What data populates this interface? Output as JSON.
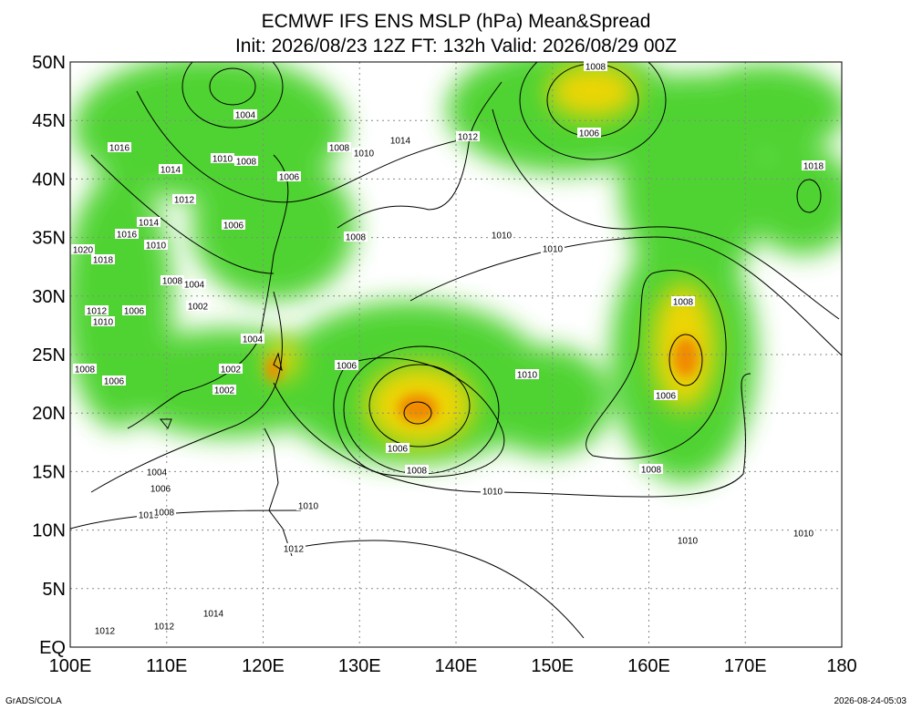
{
  "title": "ECMWF IFS ENS MSLP (hPa) Mean&Spread",
  "subtitle": "Init: 2026/08/23 12Z  FT: 132h  Valid: 2026/08/29 00Z",
  "lat_labels": [
    "50N",
    "45N",
    "40N",
    "35N",
    "30N",
    "25N",
    "20N",
    "15N",
    "10N",
    "5N",
    "EQ"
  ],
  "lon_labels": [
    "100E",
    "110E",
    "120E",
    "130E",
    "140E",
    "150E",
    "160E",
    "170E",
    "180"
  ],
  "contour_labels": [
    "1008",
    "1006",
    "1004",
    "1016",
    "1014",
    "1010",
    "1008",
    "1012",
    "1006",
    "1008",
    "1010",
    "1014",
    "1012",
    "1018",
    "1014",
    "1016",
    "1010",
    "1006",
    "1020",
    "1018",
    "1008",
    "1004",
    "1002",
    "1012",
    "1010",
    "1006",
    "1008",
    "1010",
    "1010",
    "1008",
    "1004",
    "1006",
    "1002",
    "1008",
    "1006",
    "1002",
    "1010",
    "1006",
    "1006",
    "1008",
    "1008",
    "1004",
    "1006",
    "1010",
    "1010",
    "1010",
    "1008",
    "1010",
    "1010",
    "1012",
    "1014",
    "1012",
    "1012"
  ],
  "footer_left": "GrADS/COLA",
  "footer_right": "2026-08-24-05:03"
}
